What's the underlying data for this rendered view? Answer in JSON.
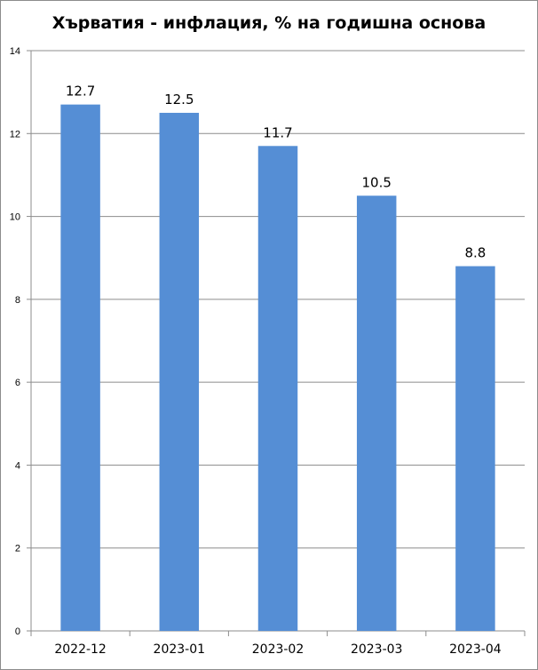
{
  "chart_data": {
    "type": "bar",
    "title": "Хърватия - инфлация, % на годишна основа",
    "categories": [
      "2022-12",
      "2023-01",
      "2023-02",
      "2023-03",
      "2023-04"
    ],
    "values": [
      12.7,
      12.5,
      11.7,
      10.5,
      8.8
    ],
    "data_labels": [
      "12.7",
      "12.5",
      "11.7",
      "10.5",
      "8.8"
    ],
    "ylim": [
      0,
      14
    ],
    "yticks": [
      0,
      2,
      4,
      6,
      8,
      10,
      12,
      14
    ],
    "grid": true,
    "legend": "none",
    "bar_color": "#558ED5",
    "grid_color": "#8c8c8c"
  }
}
